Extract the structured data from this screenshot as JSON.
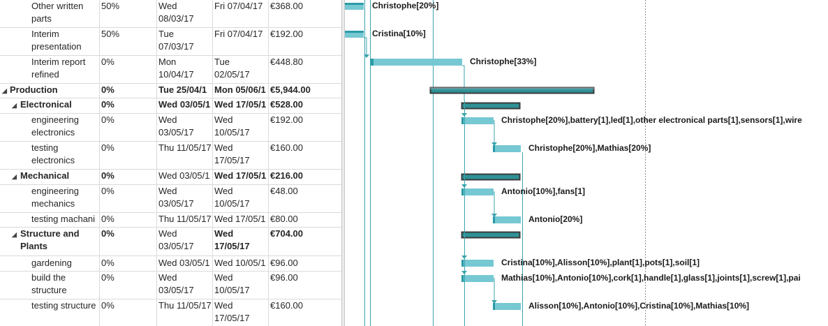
{
  "tasks": [
    {
      "name": "Other written parts",
      "complete": "50%",
      "start": "Wed 08/03/17",
      "finish": "Fri 07/04/17",
      "cost": "€368.00",
      "resources": "Christophe[20%]"
    },
    {
      "name": "Interim presentation",
      "complete": "50%",
      "start": "Tue 07/03/17",
      "finish": "Fri 07/04/17",
      "cost": "€192.00",
      "resources": "Cristina[10%]"
    },
    {
      "name": "Interim report refined",
      "complete": "0%",
      "start": "Mon 10/04/17",
      "finish": "Tue 02/05/17",
      "cost": "€448.80",
      "resources": "Christophe[33%]"
    },
    {
      "name": "Production",
      "complete": "0%",
      "start": "Tue 25/04/1",
      "finish": "Mon 05/06/1",
      "cost": "€5,944.00",
      "resources": ""
    },
    {
      "name": "Electronical",
      "complete": "0%",
      "start": "Wed 03/05/1",
      "finish": "Wed 17/05/1",
      "cost": "€528.00",
      "resources": ""
    },
    {
      "name": "engineering electronics",
      "complete": "0%",
      "start": "Wed 03/05/17",
      "finish": "Wed 10/05/17",
      "cost": "€192.00",
      "resources": "Christophe[20%],battery[1],led[1],other electronical parts[1],sensors[1],wire"
    },
    {
      "name": "testing electronics",
      "complete": "0%",
      "start": "Thu 11/05/17",
      "finish": "Wed 17/05/17",
      "cost": "€160.00",
      "resources": "Christophe[20%],Mathias[20%]"
    },
    {
      "name": "Mechanical",
      "complete": "0%",
      "start": "Wed 03/05/1",
      "finish": "Wed 17/05/1",
      "cost": "€216.00",
      "resources": ""
    },
    {
      "name": "engineering mechanics",
      "complete": "0%",
      "start": "Wed 03/05/17",
      "finish": "Wed 10/05/17",
      "cost": "€48.00",
      "resources": "Antonio[10%],fans[1]"
    },
    {
      "name": "testing machani",
      "complete": "0%",
      "start": "Thu 11/05/17",
      "finish": "Wed 17/05/1",
      "cost": "€80.00",
      "resources": "Antonio[20%]"
    },
    {
      "name": "Structure and Plants",
      "complete": "0%",
      "start": "Wed 03/05/17",
      "finish": "Wed 17/05/17",
      "cost": "€704.00",
      "resources": ""
    },
    {
      "name": "gardening",
      "complete": "0%",
      "start": "Wed 03/05/1",
      "finish": "Wed 10/05/1",
      "cost": "€96.00",
      "resources": "Cristina[10%],Alisson[10%],plant[1],pots[1],soil[1]"
    },
    {
      "name": "build the structure",
      "complete": "0%",
      "start": "Wed 03/05/17",
      "finish": "Wed 10/05/17",
      "cost": "€96.00",
      "resources": "Mathias[10%],Antonio[10%],cork[1],handle[1],glass[1],joints[1],screw[1],pai"
    },
    {
      "name": "testing structure",
      "complete": "0%",
      "start": "Thu 11/05/17",
      "finish": "Wed 17/05/17",
      "cost": "€160.00",
      "resources": "Alisson[10%],Antonio[10%],Cristina[10%],Mathias[10%]"
    }
  ],
  "icons": {
    "collapse": "collapse-triangle-icon"
  },
  "colors": {
    "task_bar": "#76c8d3",
    "task_bar_edge": "#2a9ba6",
    "summary_fill": "#2e9196",
    "summary_edge": "#3b3b3b",
    "link": "#3aa3ad"
  }
}
